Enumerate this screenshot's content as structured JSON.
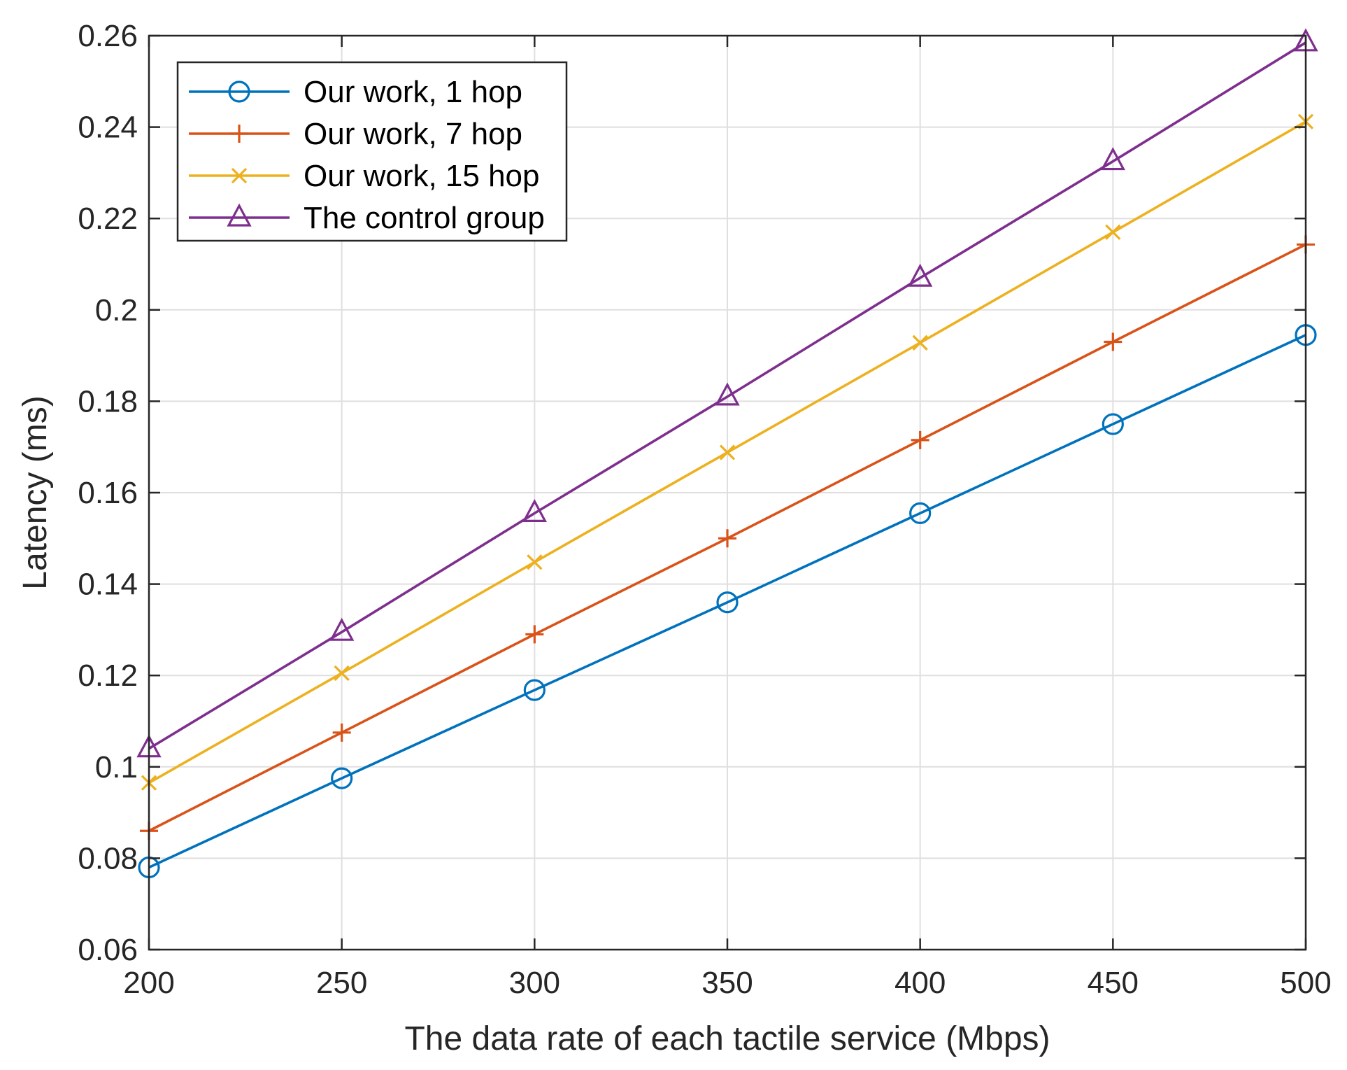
{
  "chart_data": {
    "type": "line",
    "title": "",
    "xlabel": "The data rate of each tactile service (Mbps)",
    "ylabel": "Latency (ms)",
    "x": [
      200,
      250,
      300,
      350,
      400,
      450,
      500
    ],
    "xlim": [
      200,
      500
    ],
    "ylim": [
      0.06,
      0.26
    ],
    "xticks": [
      "200",
      "250",
      "300",
      "350",
      "400",
      "450",
      "500"
    ],
    "xtick_values": [
      200,
      250,
      300,
      350,
      400,
      450,
      500
    ],
    "yticks": [
      "0.06",
      "0.08",
      "0.1",
      "0.12",
      "0.14",
      "0.16",
      "0.18",
      "0.2",
      "0.22",
      "0.24",
      "0.26"
    ],
    "ytick_values": [
      0.06,
      0.08,
      0.1,
      0.12,
      0.14,
      0.16,
      0.18,
      0.2,
      0.22,
      0.24,
      0.26
    ],
    "grid": true,
    "legend_position": "top-left",
    "series": [
      {
        "name": "Our work, 1 hop",
        "color": "#0072BD",
        "marker": "circle",
        "values": [
          0.078,
          0.0975,
          0.1168,
          0.136,
          0.1555,
          0.175,
          0.1945
        ]
      },
      {
        "name": "Our work, 7 hop",
        "color": "#D95319",
        "marker": "plus",
        "values": [
          0.086,
          0.1075,
          0.129,
          0.15,
          0.1715,
          0.193,
          0.2143
        ]
      },
      {
        "name": "Our work, 15 hop",
        "color": "#EDB120",
        "marker": "x",
        "values": [
          0.0965,
          0.1205,
          0.1448,
          0.1688,
          0.1928,
          0.217,
          0.2412
        ]
      },
      {
        "name": "The control group",
        "color": "#7E2F8E",
        "marker": "triangle",
        "values": [
          0.104,
          0.1295,
          0.1555,
          0.181,
          0.207,
          0.2325,
          0.2585
        ]
      }
    ]
  }
}
